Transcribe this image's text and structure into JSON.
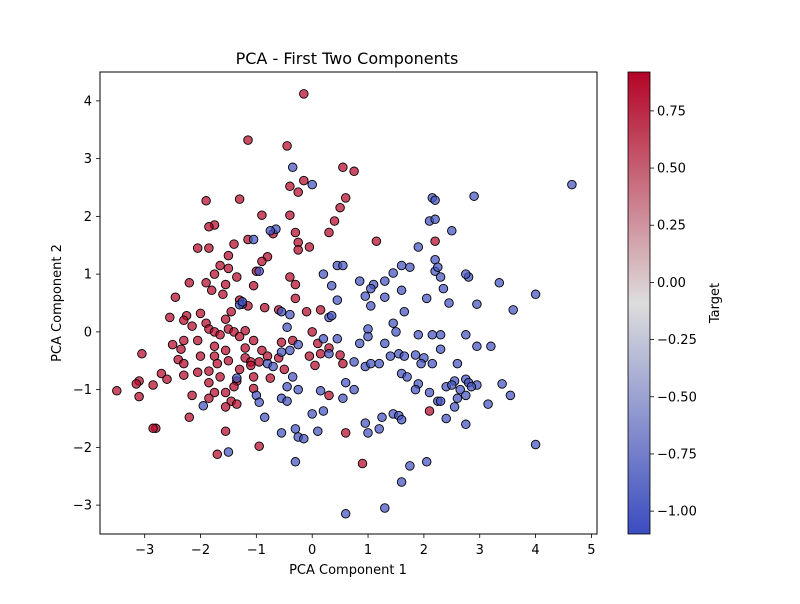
{
  "chart_data": {
    "type": "scatter",
    "title": "PCA - First Two Components",
    "xlabel": "PCA Component 1",
    "ylabel": "PCA Component 2",
    "xlim": [
      -3.8,
      5.1
    ],
    "ylim": [
      -3.5,
      4.5
    ],
    "xticks": [
      -3,
      -2,
      -1,
      0,
      1,
      2,
      3,
      4,
      5
    ],
    "yticks": [
      -3,
      -2,
      -1,
      0,
      1,
      2,
      3,
      4
    ],
    "colorbar": {
      "label": "Target",
      "range": [
        -1.1,
        0.92
      ],
      "ticks": [
        0.75,
        0.5,
        0.25,
        0.0,
        -0.25,
        -0.5,
        -0.75,
        -1.0
      ],
      "colormap": [
        "#3b4cc0",
        "#dddddd",
        "#b40426"
      ]
    },
    "grid": false,
    "series": [
      {
        "value": 0.9,
        "points": [
          [
            -0.15,
            4.12
          ],
          [
            -1.15,
            3.32
          ],
          [
            -0.45,
            3.22
          ],
          [
            0.55,
            2.85
          ],
          [
            0.75,
            2.78
          ],
          [
            -0.15,
            2.62
          ],
          [
            -0.4,
            2.52
          ],
          [
            -0.25,
            2.42
          ],
          [
            0.6,
            2.32
          ],
          [
            -1.3,
            2.3
          ],
          [
            -1.9,
            2.27
          ],
          [
            0.5,
            2.15
          ],
          [
            -0.4,
            2.02
          ],
          [
            -0.9,
            2.02
          ],
          [
            0.4,
            1.92
          ],
          [
            -1.75,
            1.85
          ],
          [
            -1.85,
            1.82
          ],
          [
            -0.3,
            1.72
          ],
          [
            0.3,
            1.72
          ],
          [
            -0.7,
            1.7
          ],
          [
            -1.15,
            1.6
          ],
          [
            -0.25,
            1.55
          ],
          [
            -1.4,
            1.52
          ],
          [
            -0.05,
            1.47
          ],
          [
            -2.05,
            1.45
          ],
          [
            -1.85,
            1.45
          ],
          [
            -0.25,
            1.42
          ],
          [
            -1.5,
            1.32
          ],
          [
            -0.8,
            1.3
          ],
          [
            -0.9,
            1.22
          ],
          [
            -1.65,
            1.15
          ],
          [
            -1.5,
            1.1
          ],
          [
            -1.0,
            1.05
          ],
          [
            -1.75,
            1.0
          ],
          [
            -1.35,
            0.95
          ],
          [
            -0.4,
            0.95
          ],
          [
            -2.2,
            0.85
          ],
          [
            -1.9,
            0.85
          ],
          [
            -1.55,
            0.82
          ],
          [
            -1.05,
            0.8
          ],
          [
            -0.3,
            0.82
          ],
          [
            -1.8,
            0.72
          ],
          [
            -1.6,
            0.65
          ],
          [
            -2.45,
            0.6
          ],
          [
            -1.3,
            0.55
          ],
          [
            -0.3,
            0.58
          ],
          [
            -1.15,
            0.45
          ],
          [
            -0.85,
            0.42
          ],
          [
            -0.6,
            0.38
          ],
          [
            -2.0,
            0.32
          ],
          [
            -1.45,
            0.35
          ],
          [
            -0.1,
            0.35
          ],
          [
            0.15,
            0.38
          ],
          [
            -2.25,
            0.28
          ],
          [
            -1.55,
            0.22
          ],
          [
            -2.3,
            0.2
          ],
          [
            -2.55,
            0.25
          ],
          [
            -1.9,
            0.15
          ],
          [
            -1.5,
            0.05
          ],
          [
            -1.85,
            0.05
          ],
          [
            -2.15,
            0.1
          ],
          [
            -1.75,
            0.0
          ],
          [
            -1.4,
            0.0
          ],
          [
            -1.2,
            0.02
          ],
          [
            0.0,
            0.0
          ],
          [
            -1.65,
            -0.05
          ],
          [
            -1.3,
            -0.08
          ],
          [
            -2.3,
            -0.15
          ],
          [
            -2.05,
            -0.15
          ],
          [
            -1.05,
            -0.15
          ],
          [
            -0.35,
            -0.15
          ],
          [
            -0.55,
            -0.18
          ],
          [
            0.1,
            -0.2
          ],
          [
            -2.5,
            -0.22
          ],
          [
            -1.75,
            -0.25
          ],
          [
            -1.2,
            -0.28
          ],
          [
            -2.35,
            -0.3
          ],
          [
            0.3,
            -0.28
          ],
          [
            -1.55,
            -0.32
          ],
          [
            -0.9,
            -0.32
          ],
          [
            0.15,
            -0.38
          ],
          [
            -2.0,
            -0.42
          ],
          [
            -3.05,
            -0.38
          ],
          [
            -1.75,
            -0.42
          ],
          [
            -1.2,
            -0.45
          ],
          [
            -0.8,
            -0.42
          ],
          [
            -0.6,
            -0.45
          ],
          [
            -0.05,
            -0.42
          ],
          [
            0.5,
            -0.4
          ],
          [
            -2.4,
            -0.48
          ],
          [
            -2.3,
            -0.55
          ],
          [
            -1.5,
            -0.5
          ],
          [
            -1.1,
            -0.52
          ],
          [
            -0.95,
            -0.52
          ],
          [
            -1.7,
            -0.55
          ],
          [
            -1.1,
            -0.58
          ],
          [
            0.05,
            -0.58
          ],
          [
            0.55,
            -0.55
          ],
          [
            -1.3,
            -0.65
          ],
          [
            -2.05,
            -0.7
          ],
          [
            -2.7,
            -0.72
          ],
          [
            -1.85,
            -0.68
          ],
          [
            -0.5,
            -0.65
          ],
          [
            -2.3,
            -0.75
          ],
          [
            -1.65,
            -0.78
          ],
          [
            -1.05,
            -0.78
          ],
          [
            -0.75,
            -0.8
          ],
          [
            -2.6,
            -0.82
          ],
          [
            -1.35,
            -0.85
          ],
          [
            -3.1,
            -0.85
          ],
          [
            -2.85,
            -0.92
          ],
          [
            -1.85,
            -0.88
          ],
          [
            -3.15,
            -0.9
          ],
          [
            -1.4,
            -0.95
          ],
          [
            -1.05,
            -0.98
          ],
          [
            -3.5,
            -1.02
          ],
          [
            -1.75,
            -1.05
          ],
          [
            -1.55,
            -1.05
          ],
          [
            -2.15,
            -1.1
          ],
          [
            0.3,
            -1.1
          ],
          [
            -3.1,
            -1.12
          ],
          [
            -1.85,
            -1.15
          ],
          [
            -1.45,
            -1.2
          ],
          [
            -1.35,
            -1.25
          ],
          [
            -1.55,
            -1.3
          ],
          [
            -2.2,
            -1.48
          ],
          [
            -1.55,
            -1.72
          ],
          [
            0.6,
            -1.75
          ],
          [
            -0.95,
            -1.98
          ],
          [
            -2.8,
            -1.67
          ],
          [
            -2.85,
            -1.67
          ],
          [
            -1.7,
            -2.12
          ],
          [
            0.9,
            -2.28
          ],
          [
            1.15,
            1.57
          ],
          [
            2.2,
            1.57
          ],
          [
            2.1,
            -1.37
          ]
        ]
      },
      {
        "value": -1.05,
        "points": [
          [
            4.65,
            2.55
          ],
          [
            -0.35,
            2.85
          ],
          [
            0.0,
            2.55
          ],
          [
            2.9,
            2.35
          ],
          [
            2.15,
            2.32
          ],
          [
            2.2,
            2.28
          ],
          [
            -0.65,
            1.78
          ],
          [
            -0.75,
            1.75
          ],
          [
            2.1,
            1.92
          ],
          [
            2.2,
            1.95
          ],
          [
            2.5,
            1.75
          ],
          [
            -1.05,
            1.6
          ],
          [
            1.9,
            1.47
          ],
          [
            2.2,
            1.05
          ],
          [
            2.2,
            1.25
          ],
          [
            2.3,
            0.95
          ],
          [
            2.25,
            1.12
          ],
          [
            1.6,
            1.15
          ],
          [
            1.75,
            1.12
          ],
          [
            0.45,
            1.15
          ],
          [
            0.55,
            1.15
          ],
          [
            -0.95,
            1.05
          ],
          [
            0.2,
            1.0
          ],
          [
            1.45,
            1.02
          ],
          [
            2.8,
            0.95
          ],
          [
            2.75,
            1.0
          ],
          [
            0.85,
            0.88
          ],
          [
            1.3,
            0.88
          ],
          [
            1.1,
            0.82
          ],
          [
            0.35,
            0.8
          ],
          [
            1.05,
            0.75
          ],
          [
            1.6,
            0.72
          ],
          [
            2.35,
            0.75
          ],
          [
            3.35,
            0.85
          ],
          [
            1.3,
            0.6
          ],
          [
            0.95,
            0.62
          ],
          [
            0.45,
            0.55
          ],
          [
            2.05,
            0.58
          ],
          [
            2.45,
            0.5
          ],
          [
            2.95,
            0.48
          ],
          [
            3.6,
            0.38
          ],
          [
            4.0,
            0.65
          ],
          [
            -1.25,
            0.48
          ],
          [
            -1.3,
            0.47
          ],
          [
            -1.25,
            0.52
          ],
          [
            -0.55,
            0.35
          ],
          [
            -0.4,
            0.3
          ],
          [
            1.05,
            0.45
          ],
          [
            1.65,
            0.35
          ],
          [
            0.3,
            0.25
          ],
          [
            0.35,
            0.28
          ],
          [
            -0.45,
            0.08
          ],
          [
            1.45,
            0.15
          ],
          [
            1.0,
            0.05
          ],
          [
            1.5,
            0.0
          ],
          [
            1.9,
            -0.05
          ],
          [
            2.15,
            -0.05
          ],
          [
            2.3,
            -0.05
          ],
          [
            2.75,
            -0.05
          ],
          [
            1.0,
            -0.08
          ],
          [
            0.2,
            -0.12
          ],
          [
            0.45,
            -0.12
          ],
          [
            1.3,
            -0.2
          ],
          [
            3.2,
            -0.25
          ],
          [
            2.3,
            -0.3
          ],
          [
            2.95,
            -0.25
          ],
          [
            -0.25,
            -0.22
          ],
          [
            0.85,
            -0.2
          ],
          [
            1.55,
            -0.38
          ],
          [
            1.65,
            -0.42
          ],
          [
            1.85,
            -0.4
          ],
          [
            1.4,
            -0.42
          ],
          [
            0.3,
            -0.38
          ],
          [
            -0.4,
            -0.32
          ],
          [
            -0.55,
            -0.35
          ],
          [
            -0.8,
            -0.55
          ],
          [
            -0.7,
            -0.6
          ],
          [
            0.95,
            -0.6
          ],
          [
            1.05,
            -0.55
          ],
          [
            1.2,
            -0.55
          ],
          [
            2.0,
            -0.45
          ],
          [
            2.15,
            -0.55
          ],
          [
            2.6,
            -0.55
          ],
          [
            0.75,
            -0.52
          ],
          [
            1.95,
            -0.55
          ],
          [
            1.6,
            -0.72
          ],
          [
            1.7,
            -0.78
          ],
          [
            2.55,
            -0.85
          ],
          [
            2.75,
            -0.82
          ],
          [
            2.8,
            -0.88
          ],
          [
            1.9,
            -0.9
          ],
          [
            -0.35,
            -0.78
          ],
          [
            -1.35,
            -0.8
          ],
          [
            1.85,
            -1.0
          ],
          [
            2.4,
            -0.95
          ],
          [
            2.5,
            -0.92
          ],
          [
            2.95,
            -0.92
          ],
          [
            2.65,
            -1.0
          ],
          [
            2.85,
            -0.95
          ],
          [
            3.4,
            -0.9
          ],
          [
            0.6,
            -0.88
          ],
          [
            0.75,
            -1.0
          ],
          [
            0.15,
            -1.02
          ],
          [
            3.55,
            -1.1
          ],
          [
            -0.45,
            -0.95
          ],
          [
            -0.25,
            -1.0
          ],
          [
            -1.0,
            -1.1
          ],
          [
            2.1,
            -1.05
          ],
          [
            2.75,
            -1.1
          ],
          [
            0.55,
            -1.15
          ],
          [
            -0.55,
            -1.15
          ],
          [
            -0.45,
            -1.2
          ],
          [
            -0.95,
            -1.22
          ],
          [
            2.6,
            -1.15
          ],
          [
            -1.95,
            -1.28
          ],
          [
            2.55,
            -1.3
          ],
          [
            3.15,
            -1.25
          ],
          [
            0.0,
            -1.42
          ],
          [
            0.2,
            -1.37
          ],
          [
            -0.85,
            -1.48
          ],
          [
            1.25,
            -1.48
          ],
          [
            1.45,
            -1.42
          ],
          [
            1.55,
            -1.45
          ],
          [
            1.6,
            -1.52
          ],
          [
            2.25,
            -1.2
          ],
          [
            2.4,
            -1.5
          ],
          [
            2.75,
            -1.6
          ],
          [
            0.95,
            -1.58
          ],
          [
            0.1,
            -1.72
          ],
          [
            1.0,
            -1.75
          ],
          [
            1.2,
            -1.68
          ],
          [
            -0.3,
            -1.68
          ],
          [
            -0.55,
            -1.75
          ],
          [
            -0.25,
            -1.82
          ],
          [
            -0.15,
            -1.85
          ],
          [
            2.3,
            -1.2
          ],
          [
            -1.5,
            -2.08
          ],
          [
            -0.3,
            -2.25
          ],
          [
            1.75,
            -2.32
          ],
          [
            2.05,
            -2.25
          ],
          [
            1.6,
            -2.6
          ],
          [
            0.6,
            -3.15
          ],
          [
            1.3,
            -3.05
          ],
          [
            4.0,
            -1.95
          ]
        ]
      }
    ]
  }
}
